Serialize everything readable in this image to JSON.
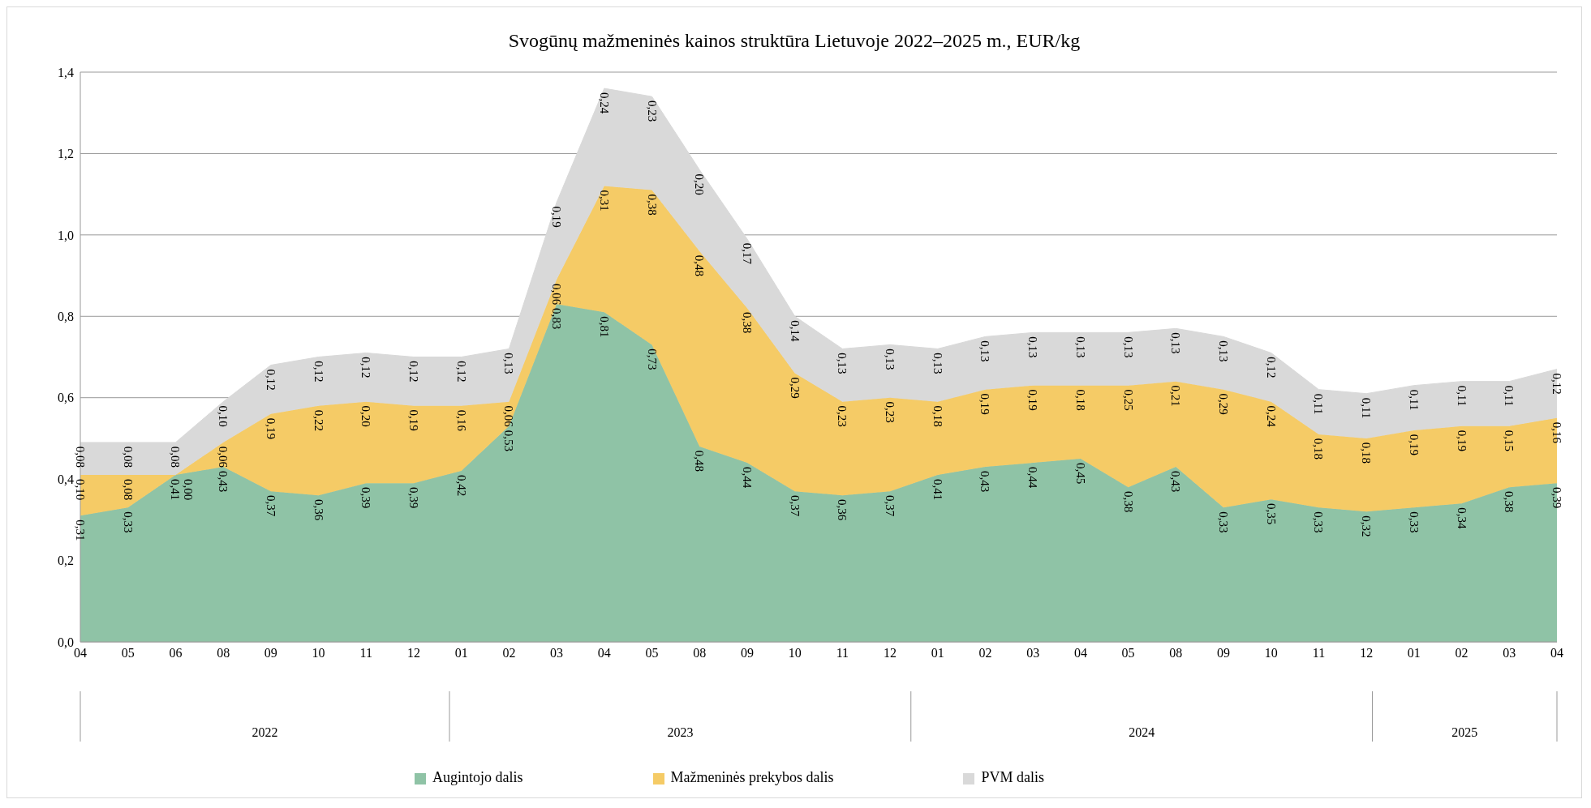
{
  "chart_data": {
    "type": "area",
    "stacked": true,
    "title": "Svogūnų mažmeninės kainos struktūra Lietuvoje 2022–2025 m., EUR/kg",
    "categories": [
      "04",
      "05",
      "06",
      "08",
      "09",
      "10",
      "11",
      "12",
      "01",
      "02",
      "03",
      "04",
      "05",
      "08",
      "09",
      "10",
      "11",
      "12",
      "01",
      "02",
      "03",
      "04",
      "05",
      "08",
      "09",
      "10",
      "11",
      "12",
      "01",
      "02",
      "03",
      "04"
    ],
    "annotations": [
      "2022",
      "2023",
      "2024",
      "2025"
    ],
    "series": [
      {
        "name": "Augintojo dalis",
        "color": "#8fc3a6",
        "values": [
          0.31,
          0.33,
          0.41,
          0.43,
          0.37,
          0.36,
          0.39,
          0.39,
          0.42,
          0.53,
          0.83,
          0.81,
          0.73,
          0.48,
          0.44,
          0.37,
          0.36,
          0.37,
          0.41,
          0.43,
          0.44,
          0.45,
          0.38,
          0.43,
          0.33,
          0.35,
          0.33,
          0.32,
          0.33,
          0.34,
          0.38,
          0.39
        ],
        "value_labels": [
          "0,31",
          "0,33",
          "0,41",
          "0,43",
          "0,37",
          "0,36",
          "0,39",
          "0,39",
          "0,42",
          "0,53",
          "0,83",
          "0,81",
          "0,73",
          "0,48",
          "0,44",
          "0,37",
          "0,36",
          "0,37",
          "0,41",
          "0,43",
          "0,44",
          "0,45",
          "0,38",
          "0,43",
          "0,33",
          "0,35",
          "0,33",
          "0,32",
          "0,33",
          "0,34",
          "0,38",
          "0,39"
        ]
      },
      {
        "name": "Mažmeninės prekybos dalis",
        "color": "#f5cb66",
        "values": [
          0.1,
          0.08,
          0.0,
          0.06,
          0.19,
          0.22,
          0.2,
          0.19,
          0.16,
          0.06,
          0.06,
          0.31,
          0.38,
          0.48,
          0.38,
          0.29,
          0.23,
          0.23,
          0.18,
          0.19,
          0.19,
          0.18,
          0.25,
          0.21,
          0.29,
          0.24,
          0.18,
          0.18,
          0.19,
          0.19,
          0.15,
          0.16
        ],
        "value_labels": [
          "0,10",
          "0,08",
          "0,00",
          "0,06",
          "0,19",
          "0,22",
          "0,20",
          "0,19",
          "0,16",
          "0,06",
          "0,06",
          "0,31",
          "0,38",
          "0,48",
          "0,38",
          "0,29",
          "0,23",
          "0,23",
          "0,18",
          "0,19",
          "0,19",
          "0,18",
          "0,25",
          "0,21",
          "0,29",
          "0,24",
          "0,18",
          "0,18",
          "0,19",
          "0,19",
          "0,15",
          "0,16"
        ]
      },
      {
        "name": "PVM dalis",
        "color": "#d9d9d9",
        "values": [
          0.08,
          0.08,
          0.08,
          0.1,
          0.12,
          0.12,
          0.12,
          0.12,
          0.12,
          0.13,
          0.19,
          0.24,
          0.23,
          0.2,
          0.17,
          0.14,
          0.13,
          0.13,
          0.13,
          0.13,
          0.13,
          0.13,
          0.13,
          0.13,
          0.13,
          0.12,
          0.11,
          0.11,
          0.11,
          0.11,
          0.11,
          0.12
        ],
        "value_labels": [
          "0,08",
          "0,08",
          "0,08",
          "0,10",
          "0,12",
          "0,12",
          "0,12",
          "0,12",
          "0,12",
          "0,13",
          "0,19",
          "0,24",
          "0,23",
          "0,20",
          "0,17",
          "0,14",
          "0,13",
          "0,13",
          "0,13",
          "0,13",
          "0,13",
          "0,13",
          "0,13",
          "0,13",
          "0,13",
          "0,12",
          "0,11",
          "0,11",
          "0,11",
          "0,11",
          "0,11",
          "0,12"
        ]
      }
    ],
    "ylim": [
      0,
      1.4
    ],
    "yticks": [
      {
        "value": 0,
        "label": "0,0"
      },
      {
        "value": 0.2,
        "label": "0,2"
      },
      {
        "value": 0.4,
        "label": "0,4"
      },
      {
        "value": 0.6,
        "label": "0,6"
      },
      {
        "value": 0.8,
        "label": "0,8"
      },
      {
        "value": 1.0,
        "label": "1,0"
      },
      {
        "value": 1.2,
        "label": "1,2"
      },
      {
        "value": 1.4,
        "label": "1,4"
      }
    ],
    "grid": "y",
    "legend": "bottom",
    "marker": "none"
  }
}
